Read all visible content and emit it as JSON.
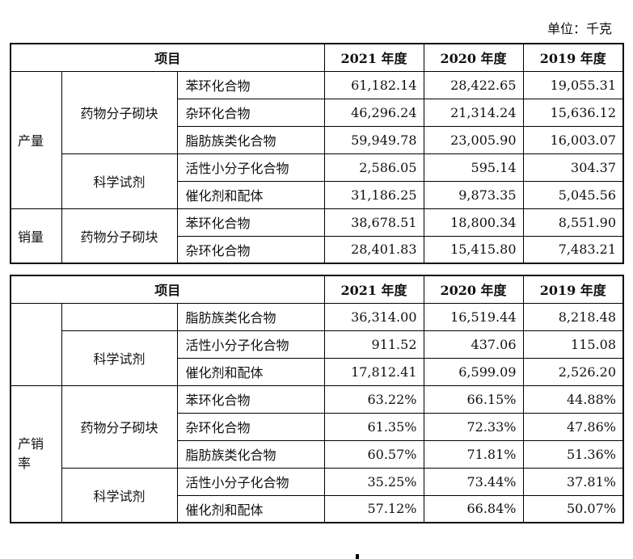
{
  "unit_label": "单位：千克",
  "table1": {
    "header": [
      "项目",
      "2021 年度",
      "2020 年度",
      "2019 年度"
    ],
    "groups": {
      "production": "产量",
      "sales": "销量"
    },
    "subs": {
      "blocks": "药物分子砌块",
      "reagents": "科学试剂"
    },
    "rows": [
      {
        "name": "苯环化合物",
        "v": [
          "61,182.14",
          "28,422.65",
          "19,055.31"
        ]
      },
      {
        "name": "杂环化合物",
        "v": [
          "46,296.24",
          "21,314.24",
          "15,636.12"
        ]
      },
      {
        "name": "脂肪族类化合物",
        "v": [
          "59,949.78",
          "23,005.90",
          "16,003.07"
        ]
      },
      {
        "name": "活性小分子化合物",
        "v": [
          "2,586.05",
          "595.14",
          "304.37"
        ]
      },
      {
        "name": "催化剂和配体",
        "v": [
          "31,186.25",
          "9,873.35",
          "5,045.56"
        ]
      },
      {
        "name": "苯环化合物",
        "v": [
          "38,678.51",
          "18,800.34",
          "8,551.90"
        ]
      },
      {
        "name": "杂环化合物",
        "v": [
          "28,401.83",
          "15,415.80",
          "7,483.21"
        ]
      }
    ]
  },
  "table2": {
    "header": [
      "项目",
      "2021 年度",
      "2020 年度",
      "2019 年度"
    ],
    "groups": {
      "ratio": "产销\n率"
    },
    "subs": {
      "reagents_a": "科学试剂",
      "blocks": "药物分子砌块",
      "reagents_b": "科学试剂"
    },
    "rows": [
      {
        "name": "脂肪族类化合物",
        "v": [
          "36,314.00",
          "16,519.44",
          "8,218.48"
        ]
      },
      {
        "name": "活性小分子化合物",
        "v": [
          "911.52",
          "437.06",
          "115.08"
        ]
      },
      {
        "name": "催化剂和配体",
        "v": [
          "17,812.41",
          "6,599.09",
          "2,526.20"
        ]
      },
      {
        "name": "苯环化合物",
        "v": [
          "63.22%",
          "66.15%",
          "44.88%"
        ]
      },
      {
        "name": "杂环化合物",
        "v": [
          "61.35%",
          "72.33%",
          "47.86%"
        ]
      },
      {
        "name": "脂肪族类化合物",
        "v": [
          "60.57%",
          "71.81%",
          "51.36%"
        ]
      },
      {
        "name": "活性小分子化合物",
        "v": [
          "35.25%",
          "73.44%",
          "37.81%"
        ]
      },
      {
        "name": "催化剂和配体",
        "v": [
          "57.12%",
          "66.84%",
          "50.07%"
        ]
      }
    ]
  }
}
